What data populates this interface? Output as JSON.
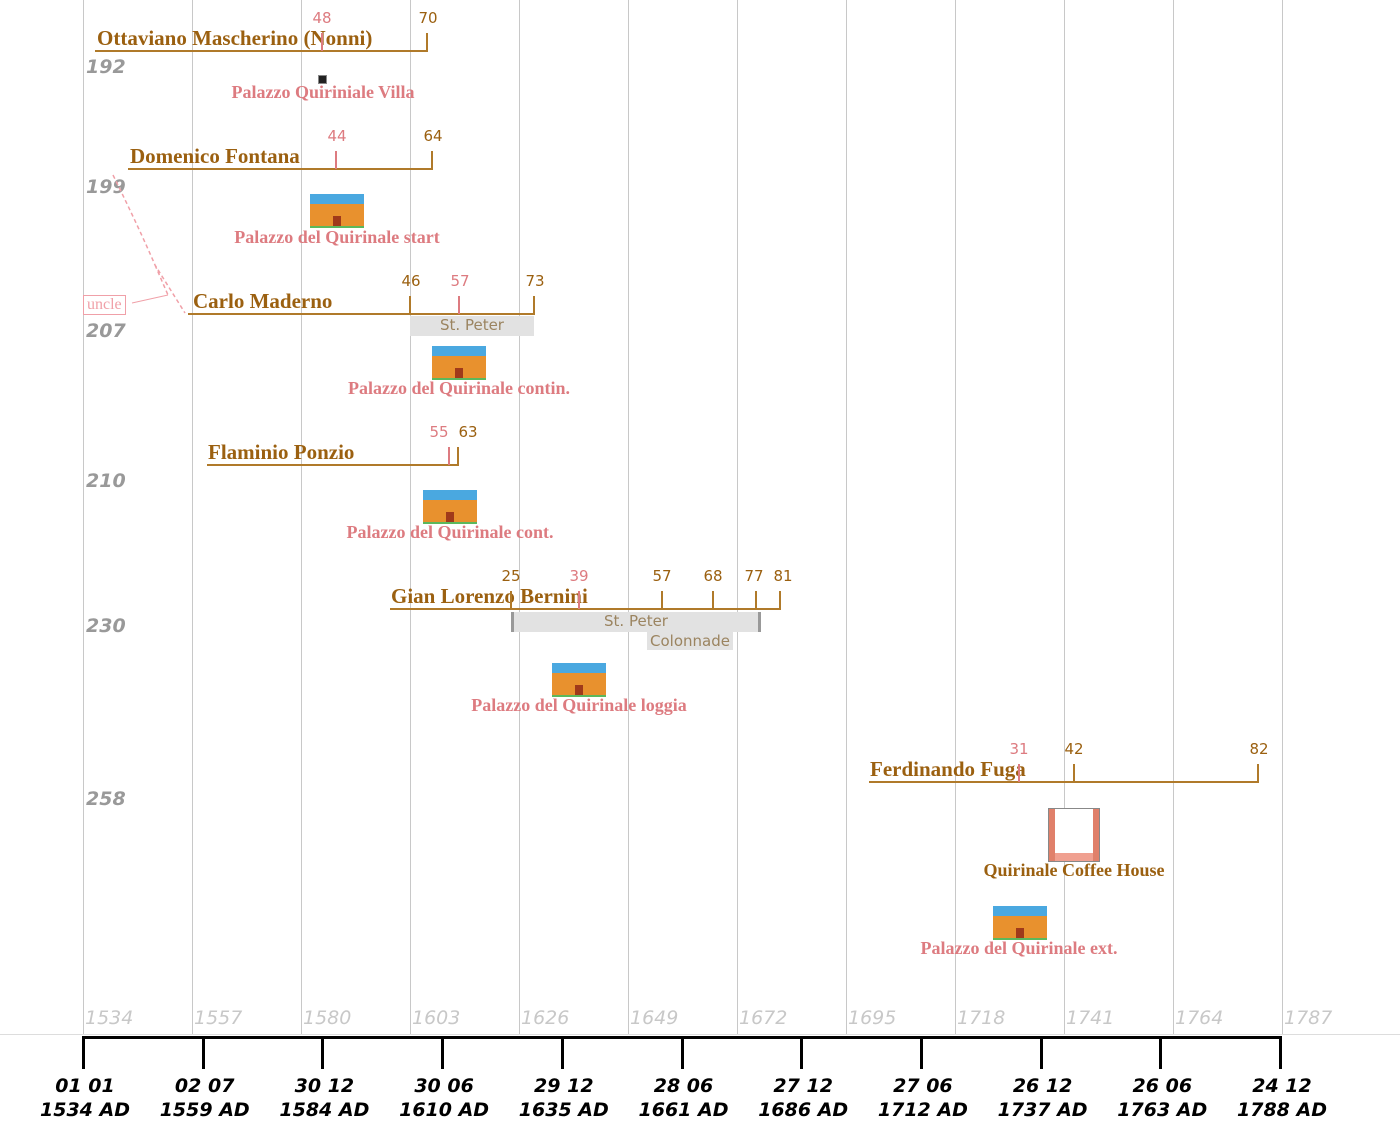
{
  "year_labels": [
    "1534",
    "1557",
    "1580",
    "1603",
    "1626",
    "1649",
    "1672",
    "1695",
    "1718",
    "1741",
    "1764",
    "1787"
  ],
  "axis_labels": [
    [
      "01 01",
      "1534 AD"
    ],
    [
      "02 07",
      "1559 AD"
    ],
    [
      "30 12",
      "1584 AD"
    ],
    [
      "30 06",
      "1610 AD"
    ],
    [
      "29 12",
      "1635 AD"
    ],
    [
      "28 06",
      "1661 AD"
    ],
    [
      "27 12",
      "1686 AD"
    ],
    [
      "27 06",
      "1712 AD"
    ],
    [
      "26 12",
      "1737 AD"
    ],
    [
      "26 06",
      "1763 AD"
    ],
    [
      "24 12",
      "1788 AD"
    ]
  ],
  "rows": [
    {
      "number": "192",
      "name": "Ottaviano Mascherino (Nonni)",
      "ticks": [
        "48",
        "70"
      ],
      "event": "Palazzo Quiriniale Villa"
    },
    {
      "number": "199",
      "name": "Domenico Fontana",
      "ticks": [
        "44",
        "64"
      ],
      "event": "Palazzo del Quirinale start"
    },
    {
      "number": "207",
      "name": "Carlo Maderno",
      "ticks": [
        "46",
        "57",
        "73"
      ],
      "works": [
        "St. Peter"
      ],
      "event": "Palazzo del Quirinale contin."
    },
    {
      "number": "210",
      "name": "Flaminio Ponzio",
      "ticks": [
        "55",
        "63"
      ],
      "event": "Palazzo del Quirinale cont."
    },
    {
      "number": "230",
      "name": "Gian Lorenzo Bernini",
      "ticks": [
        "25",
        "39",
        "57",
        "68",
        "77",
        "81"
      ],
      "works": [
        "St. Peter",
        "Colonnade"
      ],
      "event": "Palazzo del Quirinale loggia"
    },
    {
      "number": "258",
      "name": "Ferdinando Fuga",
      "ticks": [
        "31",
        "42",
        "82"
      ],
      "events": [
        "Quirinale Coffee House",
        "Palazzo del Quirinale ext."
      ]
    }
  ],
  "relation": "uncle",
  "colors": {
    "person": "#9b6010",
    "event": "#dd7b80",
    "grid": "#c8c8c8"
  }
}
